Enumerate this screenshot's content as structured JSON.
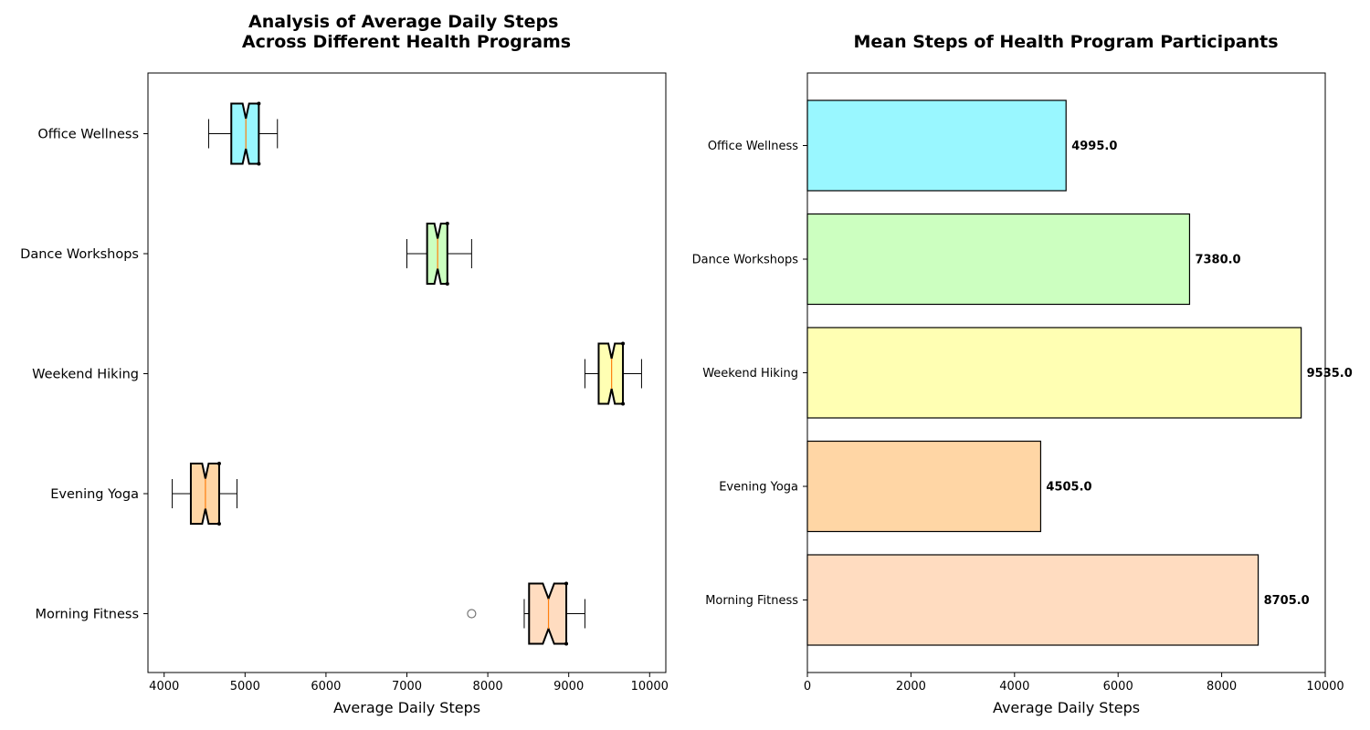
{
  "chart_data": [
    {
      "type": "box",
      "title": "Analysis of Average Daily Steps\nAcross Different Health Programs",
      "xlabel": "Average Daily Steps",
      "xlim": [
        3800,
        10200
      ],
      "xticks": [
        4000,
        5000,
        6000,
        7000,
        8000,
        9000,
        10000
      ],
      "orientation": "horizontal",
      "notched": true,
      "categories": [
        "Office Wellness",
        "Dance Workshops",
        "Weekend Hiking",
        "Evening Yoga",
        "Morning Fitness"
      ],
      "boxes": [
        {
          "name": "Office Wellness",
          "whislo": 4550,
          "q1": 4830,
          "med": 5010,
          "q3": 5170,
          "whishi": 5400,
          "notch_lo": 4970,
          "notch_hi": 5050,
          "fliers": [],
          "color": "#99f7ff"
        },
        {
          "name": "Dance Workshops",
          "whislo": 7000,
          "q1": 7250,
          "med": 7380,
          "q3": 7500,
          "whishi": 7800,
          "notch_lo": 7340,
          "notch_hi": 7420,
          "fliers": [],
          "color": "#ccffc0"
        },
        {
          "name": "Weekend Hiking",
          "whislo": 9200,
          "q1": 9370,
          "med": 9530,
          "q3": 9670,
          "whishi": 9900,
          "notch_lo": 9490,
          "notch_hi": 9570,
          "fliers": [],
          "color": "#ffffb3"
        },
        {
          "name": "Evening Yoga",
          "whislo": 4100,
          "q1": 4330,
          "med": 4510,
          "q3": 4680,
          "whishi": 4900,
          "notch_lo": 4470,
          "notch_hi": 4550,
          "fliers": [],
          "color": "#ffd6a5"
        },
        {
          "name": "Morning Fitness",
          "whislo": 8450,
          "q1": 8510,
          "med": 8750,
          "q3": 8970,
          "whishi": 9200,
          "notch_lo": 8680,
          "notch_hi": 8820,
          "fliers": [
            7800
          ],
          "color": "#ffdcc0"
        }
      ]
    },
    {
      "type": "bar",
      "orientation": "horizontal",
      "title": "Mean Steps of Health Program Participants",
      "xlabel": "Average Daily Steps",
      "xlim": [
        0,
        10000
      ],
      "xticks": [
        0,
        2000,
        4000,
        6000,
        8000,
        10000
      ],
      "categories": [
        "Office Wellness",
        "Dance Workshops",
        "Weekend Hiking",
        "Evening Yoga",
        "Morning Fitness"
      ],
      "values": [
        4995.0,
        7380.0,
        9535.0,
        4505.0,
        8705.0
      ],
      "value_labels": [
        "4995.0",
        "7380.0",
        "9535.0",
        "4505.0",
        "8705.0"
      ],
      "colors": [
        "#99f7ff",
        "#ccffc0",
        "#ffffb3",
        "#ffd6a5",
        "#ffdcc0"
      ]
    }
  ]
}
